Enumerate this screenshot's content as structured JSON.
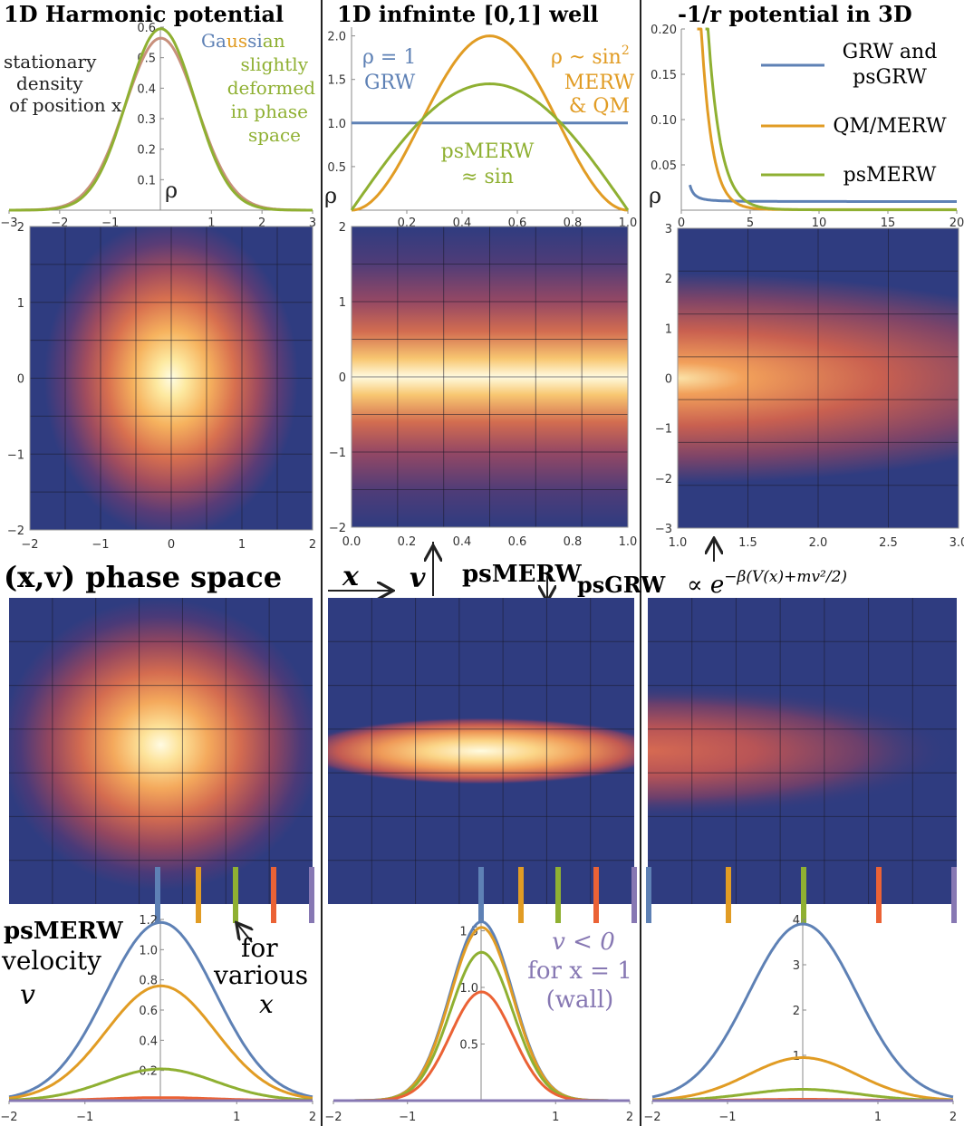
{
  "colors": {
    "blue": "#5e81b5",
    "orange": "#e19c24",
    "green": "#8fb032",
    "red": "#eb6235",
    "purple": "#8778b3"
  },
  "panels": {
    "harmonic": {
      "title": "1D Harmonic potential",
      "rho": "ρ",
      "x_sym": "x",
      "ylabel": [
        "stationary",
        "density",
        "of position x"
      ],
      "note_gaussian": "Gaussian",
      "note_lines": [
        "slightly",
        "deformed",
        "in phase",
        "space"
      ],
      "xticks": [
        "−3",
        "−2",
        "−1",
        "1",
        "2",
        "3"
      ],
      "yticks": [
        "0.1",
        "0.2",
        "0.3",
        "0.4",
        "0.5",
        "0.6"
      ]
    },
    "well": {
      "title": "1D infninte [0,1] well",
      "rho": "ρ",
      "x_sym": "x",
      "grw": [
        "ρ = 1",
        "GRW"
      ],
      "merw": [
        "ρ ~ sin",
        "2",
        "MERW",
        "& QM"
      ],
      "psmerw": [
        "psMERW",
        "≈ sin"
      ],
      "xticks": [
        "0.2",
        "0.4",
        "0.6",
        "0.8",
        "1.0"
      ],
      "yticks": [
        "0.5",
        "1.0",
        "1.5",
        "2.0"
      ]
    },
    "coulomb": {
      "title": "-1/r potential in 3D",
      "rho": "ρ",
      "r_sym": "r",
      "legend": [
        {
          "label": [
            "GRW and",
            "psGRW"
          ],
          "color": "#5e81b5"
        },
        {
          "label": [
            "QM/MERW"
          ],
          "color": "#e19c24"
        },
        {
          "label": [
            "psMERW"
          ],
          "color": "#8fb032"
        }
      ],
      "xticks": [
        "0",
        "5",
        "10",
        "15",
        "20"
      ],
      "yticks": [
        "0.05",
        "0.10",
        "0.15",
        "0.20"
      ]
    }
  },
  "maps": {
    "harmonic_xticks": [
      "−2",
      "−1",
      "0",
      "1",
      "2"
    ],
    "harmonic_yticks": [
      "2",
      "1",
      "0",
      "−1",
      "−2"
    ],
    "well_xticks": [
      "0.0",
      "0.2",
      "0.4",
      "0.6",
      "0.8",
      "1.0"
    ],
    "well_yticks": [
      "2",
      "1",
      "0",
      "−1",
      "−2"
    ],
    "coulomb_xticks": [
      "1.0",
      "1.5",
      "2.0",
      "2.5",
      "3.0"
    ],
    "coulomb_yticks": [
      "3",
      "2",
      "1",
      "0",
      "−1",
      "−2",
      "−3"
    ]
  },
  "labels": {
    "phase_space": "(x,v) phase space",
    "x_arrow": "x",
    "v_arrow": "v",
    "psmerw_mid": "psMERW",
    "psgrw": "psGRW",
    "formula": "∝ e",
    "formula_exp": "−β(V(x)+mv²/2)",
    "psmerw_bottom": "psMERW",
    "velocity": "velocity",
    "v_sym": "v",
    "for": "for",
    "various": "various",
    "x_sym": "x",
    "v_neg": [
      "v < 0",
      "for x = 1",
      "(wall)"
    ]
  },
  "velocity_plots": {
    "harmonic": {
      "yticks": [
        "0.2",
        "0.4",
        "0.6",
        "0.8",
        "1.0",
        "1.2"
      ],
      "xticks": [
        "−2",
        "−1",
        "1",
        "2"
      ]
    },
    "well": {
      "yticks": [
        "0.5",
        "1.0",
        "1.5"
      ],
      "xticks": [
        "−2",
        "−1",
        "1",
        "2"
      ]
    },
    "coulomb": {
      "yticks": [
        "1",
        "2",
        "3",
        "4"
      ],
      "xticks": [
        "−2",
        "−1",
        "1",
        "2"
      ]
    }
  },
  "chart_data": [
    {
      "type": "line",
      "title": "1D Harmonic potential",
      "xlabel": "x",
      "ylabel": "ρ",
      "xlim": [
        -3,
        3
      ],
      "ylim": [
        0,
        0.6
      ],
      "series": [
        {
          "name": "Gaussian (GRW)",
          "color": "#5e81b5",
          "formula": "0.564*exp(-x^2)"
        },
        {
          "name": "QM/MERW",
          "color": "#e19c24",
          "formula": "0.564*exp(-x^2)"
        },
        {
          "name": "psMERW",
          "color": "#8fb032",
          "formula": "0.595*exp(-1.1*x^2)"
        }
      ]
    },
    {
      "type": "line",
      "title": "1D infninte [0,1] well",
      "xlabel": "x",
      "ylabel": "ρ",
      "xlim": [
        0,
        1
      ],
      "ylim": [
        0,
        2.1
      ],
      "series": [
        {
          "name": "GRW ρ = 1",
          "color": "#5e81b5",
          "formula": "1"
        },
        {
          "name": "MERW & QM ρ ~ sin²",
          "color": "#e19c24",
          "formula": "2*sin(pi*x)^2"
        },
        {
          "name": "psMERW ≈ sin",
          "color": "#8fb032",
          "formula": "1.45*sin(pi*x)"
        }
      ]
    },
    {
      "type": "line",
      "title": "-1/r potential in 3D",
      "xlabel": "r",
      "ylabel": "ρ",
      "xlim": [
        0,
        20
      ],
      "ylim": [
        0,
        0.2
      ],
      "series": [
        {
          "name": "GRW and psGRW",
          "color": "#5e81b5"
        },
        {
          "name": "QM/MERW",
          "color": "#e19c24"
        },
        {
          "name": "psMERW",
          "color": "#8fb032"
        }
      ]
    },
    {
      "type": "heatmap",
      "title": "(x,v) phase space psGRW harmonic",
      "xlim": [
        -2,
        2
      ],
      "ylim": [
        -2,
        2
      ]
    },
    {
      "type": "heatmap",
      "title": "(x,v) phase space psGRW well",
      "xlim": [
        0,
        1
      ],
      "ylim": [
        -2,
        2
      ]
    },
    {
      "type": "heatmap",
      "title": "(x,v) phase space psGRW coulomb",
      "xlim": [
        1,
        3
      ],
      "ylim": [
        -3,
        3
      ]
    },
    {
      "type": "line",
      "title": "psMERW velocity v for various x (harmonic)",
      "xlim": [
        -2,
        2
      ],
      "ylim": [
        0,
        1.2
      ],
      "series": [
        {
          "name": "x1",
          "color": "#5e81b5",
          "peak": 1.18
        },
        {
          "name": "x2",
          "color": "#e19c24",
          "peak": 0.76
        },
        {
          "name": "x3",
          "color": "#8fb032",
          "peak": 0.21
        },
        {
          "name": "x4",
          "color": "#eb6235",
          "peak": 0.02
        },
        {
          "name": "x5",
          "color": "#8778b3",
          "peak": 0.0
        }
      ]
    },
    {
      "type": "line",
      "title": "psMERW velocity v for various x (well)",
      "xlim": [
        -2,
        2
      ],
      "ylim": [
        0,
        1.6
      ],
      "series": [
        {
          "name": "x1",
          "color": "#5e81b5",
          "peak": 1.58
        },
        {
          "name": "x2",
          "color": "#e19c24",
          "peak": 1.53
        },
        {
          "name": "x3",
          "color": "#8fb032",
          "peak": 1.31
        },
        {
          "name": "x4",
          "color": "#eb6235",
          "peak": 0.96
        },
        {
          "name": "x5",
          "color": "#8778b3",
          "peak": 0.0
        }
      ]
    },
    {
      "type": "line",
      "title": "psMERW velocity v for various x (coulomb)",
      "xlim": [
        -2,
        2
      ],
      "ylim": [
        0,
        4
      ],
      "series": [
        {
          "name": "x1",
          "color": "#5e81b5",
          "peak": 3.9
        },
        {
          "name": "x2",
          "color": "#e19c24",
          "peak": 0.95
        },
        {
          "name": "x3",
          "color": "#8fb032",
          "peak": 0.25
        },
        {
          "name": "x4",
          "color": "#eb6235",
          "peak": 0.03
        },
        {
          "name": "x5",
          "color": "#8778b3",
          "peak": 0.0
        }
      ]
    }
  ]
}
